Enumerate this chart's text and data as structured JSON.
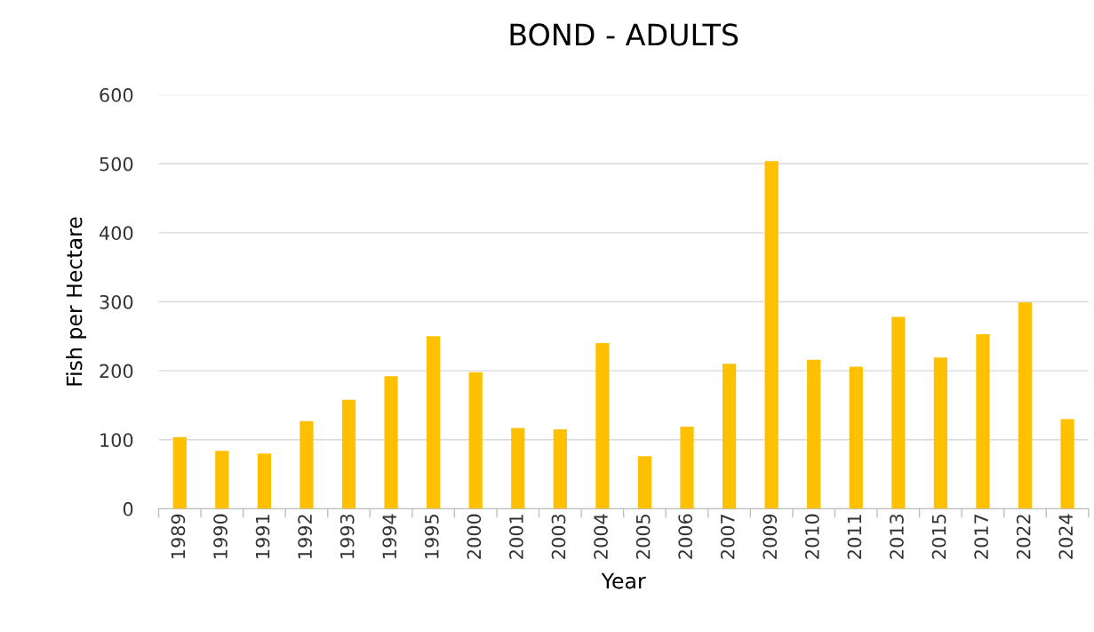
{
  "chart_data": {
    "type": "bar",
    "title": "BOND - ADULTS",
    "xlabel": "Year",
    "ylabel": "Fish per Hectare",
    "categories": [
      "1989",
      "1990",
      "1991",
      "1992",
      "1993",
      "1994",
      "1995",
      "2000",
      "2001",
      "2003",
      "2004",
      "2005",
      "2006",
      "2007",
      "2009",
      "2010",
      "2011",
      "2013",
      "2015",
      "2017",
      "2022",
      "2024"
    ],
    "values": [
      104,
      84,
      80,
      127,
      158,
      192,
      250,
      198,
      117,
      115,
      240,
      76,
      119,
      210,
      504,
      216,
      206,
      278,
      219,
      253,
      299,
      130
    ],
    "color": "#ffc000",
    "ylim": [
      0,
      600
    ],
    "yticks": [
      0,
      100,
      200,
      300,
      400,
      500,
      600
    ],
    "grid": "y",
    "legend": false
  }
}
